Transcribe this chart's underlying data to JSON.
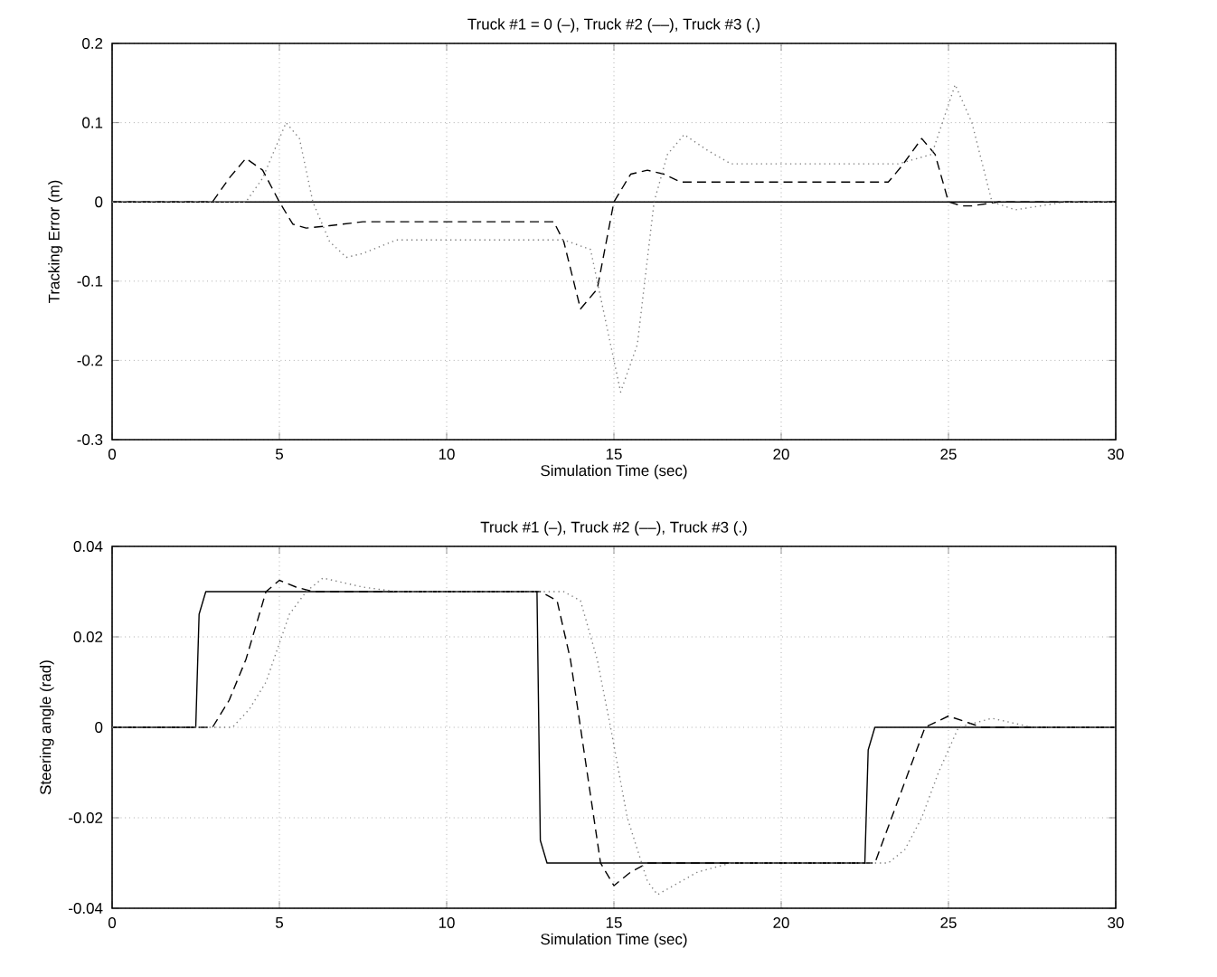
{
  "chart_data": [
    {
      "type": "line",
      "title": "Truck #1 = 0 (–), Truck #2 (––), Truck #3 (.)",
      "xlabel": "Simulation Time (sec)",
      "ylabel": "Tracking Error (m)",
      "xlim": [
        0,
        30
      ],
      "ylim": [
        -0.3,
        0.2
      ],
      "xticks": [
        0,
        5,
        10,
        15,
        20,
        25,
        30
      ],
      "yticks": [
        -0.3,
        -0.2,
        -0.1,
        0,
        0.1,
        0.2
      ],
      "grid": true,
      "marker": "none",
      "series": [
        {
          "color": "#000000",
          "line_style": "solid",
          "x": [
            0,
            30
          ],
          "values": [
            0,
            0
          ]
        },
        {
          "color": "#000000",
          "line_style": "dashed",
          "x": [
            0,
            3.0,
            3.5,
            4.0,
            4.5,
            5.0,
            5.4,
            5.8,
            6.5,
            7.5,
            13.2,
            13.5,
            14.0,
            14.5,
            15.0,
            15.5,
            16.0,
            16.5,
            17.0,
            23.2,
            23.6,
            24.2,
            24.6,
            25.0,
            25.4,
            25.7,
            26.5,
            30
          ],
          "values": [
            0,
            0,
            0.03,
            0.055,
            0.04,
            0,
            -0.028,
            -0.033,
            -0.03,
            -0.025,
            -0.025,
            -0.05,
            -0.135,
            -0.11,
            0,
            0.035,
            0.04,
            0.035,
            0.025,
            0.025,
            0.045,
            0.08,
            0.06,
            0,
            -0.005,
            -0.005,
            0,
            0
          ]
        },
        {
          "color": "#808080",
          "line_style": "dotted",
          "x": [
            0,
            4.0,
            4.5,
            5.2,
            5.6,
            6.0,
            6.5,
            7.0,
            7.5,
            8.5,
            13.5,
            14.3,
            14.8,
            15.2,
            15.7,
            16.2,
            16.6,
            17.1,
            17.8,
            18.5,
            23.5,
            24.5,
            25.2,
            25.7,
            26.3,
            27.0,
            28.5,
            30
          ],
          "values": [
            0,
            0,
            0.03,
            0.1,
            0.08,
            0,
            -0.05,
            -0.07,
            -0.065,
            -0.048,
            -0.048,
            -0.06,
            -0.16,
            -0.24,
            -0.18,
            0,
            0.06,
            0.085,
            0.065,
            0.048,
            0.048,
            0.06,
            0.148,
            0.1,
            0,
            -0.01,
            0,
            0
          ]
        }
      ]
    },
    {
      "type": "line",
      "title": "Truck #1 (–), Truck #2 (––), Truck #3 (.)",
      "xlabel": "Simulation Time (sec)",
      "ylabel": "Steering angle (rad)",
      "xlim": [
        0,
        30
      ],
      "ylim": [
        -0.04,
        0.04
      ],
      "xticks": [
        0,
        5,
        10,
        15,
        20,
        25,
        30
      ],
      "yticks": [
        -0.04,
        -0.02,
        0,
        0.02,
        0.04
      ],
      "grid": true,
      "marker": "none",
      "series": [
        {
          "color": "#000000",
          "line_style": "solid",
          "x": [
            0,
            2.5,
            2.6,
            2.8,
            12.7,
            12.8,
            13.0,
            22.5,
            22.6,
            22.8,
            30
          ],
          "values": [
            0,
            0,
            0.025,
            0.03,
            0.03,
            -0.025,
            -0.03,
            -0.03,
            -0.005,
            0,
            0
          ]
        },
        {
          "color": "#000000",
          "line_style": "dashed",
          "x": [
            0,
            3.0,
            3.5,
            4.0,
            4.6,
            5.0,
            5.5,
            6.0,
            12.8,
            13.3,
            13.7,
            14.0,
            14.3,
            14.6,
            15.0,
            15.5,
            16.0,
            22.8,
            23.3,
            23.8,
            24.3,
            25.0,
            25.6,
            26.0,
            30
          ],
          "values": [
            0,
            0,
            0.006,
            0.015,
            0.03,
            0.0325,
            0.031,
            0.03,
            0.03,
            0.028,
            0.015,
            0,
            -0.015,
            -0.03,
            -0.035,
            -0.032,
            -0.03,
            -0.03,
            -0.02,
            -0.01,
            0,
            0.0025,
            0.001,
            0,
            0
          ]
        },
        {
          "color": "#808080",
          "line_style": "dotted",
          "x": [
            0,
            3.6,
            4.1,
            4.6,
            5.3,
            5.8,
            6.3,
            7.5,
            8.5,
            13.5,
            14.0,
            14.5,
            14.9,
            15.4,
            16.0,
            16.3,
            17.5,
            18.5,
            23.2,
            23.7,
            24.2,
            24.7,
            25.3,
            26.3,
            27.5,
            30
          ],
          "values": [
            0,
            0,
            0.004,
            0.01,
            0.025,
            0.03,
            0.033,
            0.031,
            0.03,
            0.03,
            0.028,
            0.015,
            0,
            -0.02,
            -0.034,
            -0.037,
            -0.032,
            -0.03,
            -0.03,
            -0.027,
            -0.02,
            -0.01,
            0,
            0.002,
            0,
            0
          ]
        }
      ]
    }
  ]
}
